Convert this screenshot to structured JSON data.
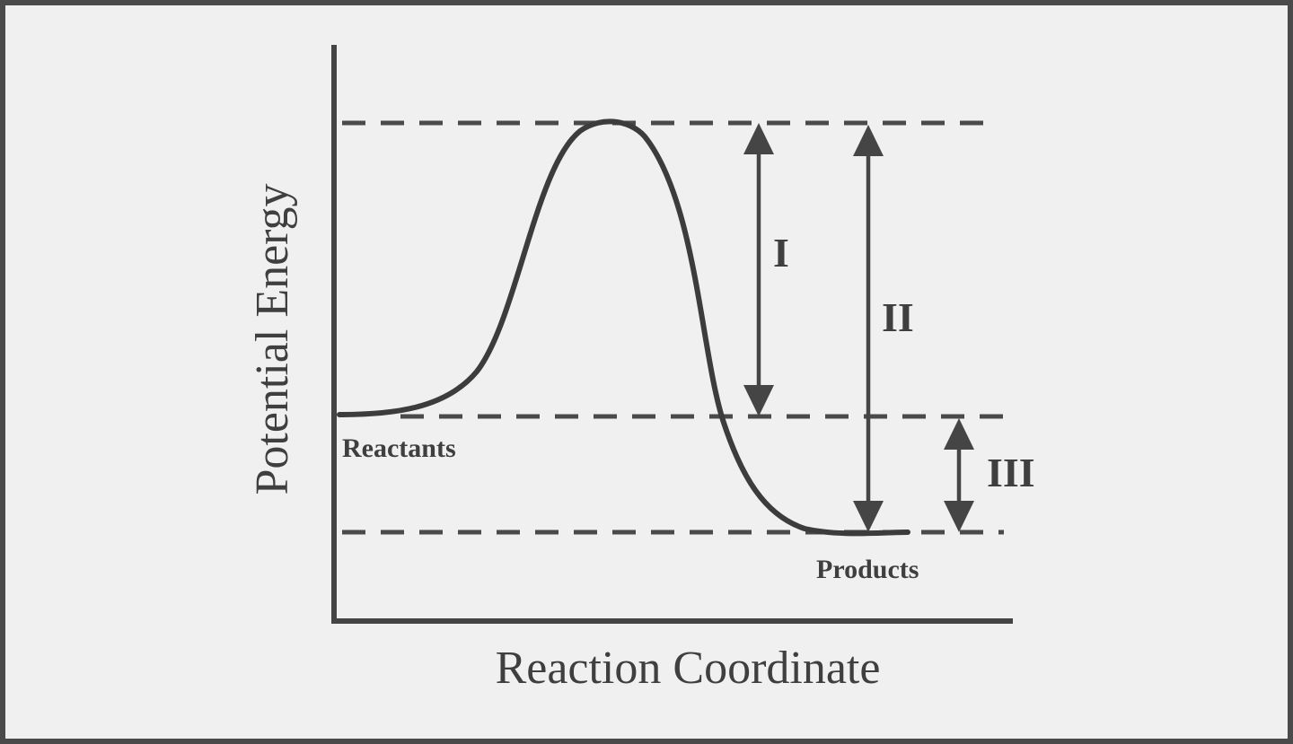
{
  "diagram": {
    "y_axis_label": "Potential Energy",
    "x_axis_label": "Reaction Coordinate",
    "reactants_label": "Reactants",
    "products_label": "Products",
    "interval_labels": {
      "I": "I",
      "II": "II",
      "III": "III"
    },
    "colors": {
      "line": "#3c3c3c",
      "background": "#f0f0f0",
      "text": "#3f3f3f"
    }
  }
}
